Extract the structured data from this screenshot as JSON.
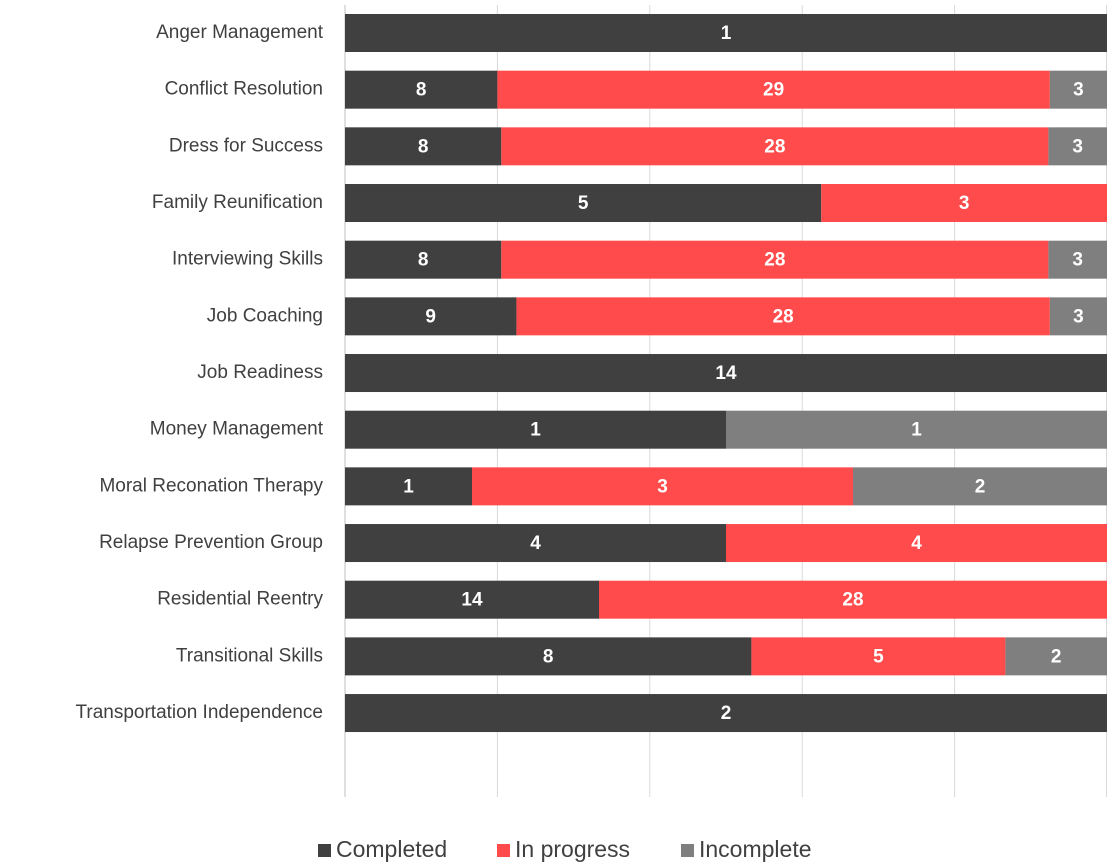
{
  "chart_data": {
    "type": "bar",
    "orientation": "horizontal",
    "stacking": "percent",
    "categories": [
      "Anger Management",
      "Conflict Resolution",
      "Dress for Success",
      "Family Reunification",
      "Interviewing Skills",
      "Job Coaching",
      "Job Readiness",
      "Money Management",
      "Moral Reconation Therapy",
      "Relapse Prevention Group",
      "Residential Reentry",
      "Transitional Skills",
      "Transportation Independence"
    ],
    "series": [
      {
        "name": "Completed",
        "color": "#404040",
        "values": [
          1,
          8,
          8,
          5,
          8,
          9,
          14,
          1,
          1,
          4,
          14,
          8,
          2
        ]
      },
      {
        "name": "In progress",
        "color": "#ff4b4b",
        "values": [
          null,
          29,
          28,
          3,
          28,
          28,
          null,
          null,
          3,
          4,
          28,
          5,
          null
        ]
      },
      {
        "name": "Incomplete",
        "color": "#7f7f7f",
        "values": [
          null,
          3,
          3,
          null,
          3,
          3,
          null,
          1,
          2,
          null,
          null,
          2,
          null
        ]
      }
    ],
    "xlim": [
      0,
      100
    ],
    "xticks": [
      0,
      20,
      40,
      60,
      80,
      100
    ],
    "grid": true,
    "legend": "bottom"
  }
}
